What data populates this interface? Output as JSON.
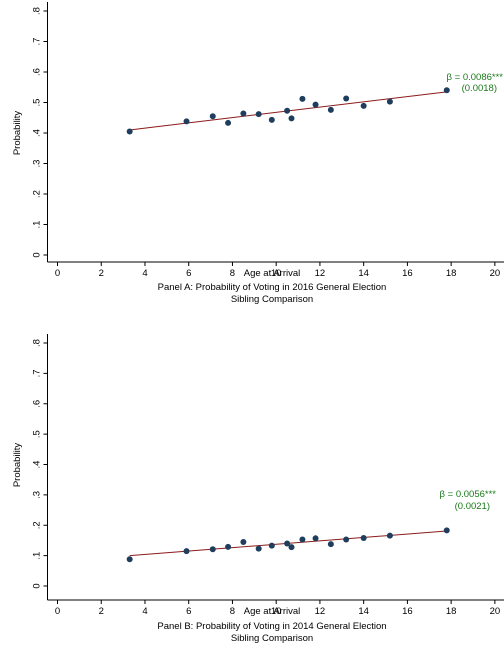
{
  "colors": {
    "marker": "#1f3d5c",
    "fit_line": "#8b1a1a",
    "annotation": "#1a7a1a",
    "axis": "#000000"
  },
  "chart_data": [
    {
      "type": "scatter",
      "panel_title": "Panel A: Probability of Voting in 2016 General Election",
      "panel_subtitle": "Sibling Comparison",
      "xlabel": "Age at Arrival",
      "ylabel": "Probability",
      "xlim": [
        0,
        20
      ],
      "ylim": [
        0,
        0.8
      ],
      "x_ticks": [
        0,
        2,
        4,
        6,
        8,
        10,
        12,
        14,
        16,
        18,
        20
      ],
      "x_tick_labels": [
        "0",
        "2",
        "4",
        "6",
        "8",
        "10",
        "12",
        "14",
        "16",
        "18",
        "20"
      ],
      "y_ticks": [
        0,
        0.1,
        0.2,
        0.3,
        0.4,
        0.5,
        0.6,
        0.7,
        0.8
      ],
      "y_tick_labels": [
        "0",
        ".1",
        ".2",
        ".3",
        ".4",
        ".5",
        ".6",
        ".7",
        ".8"
      ],
      "points": [
        {
          "x": 3.3,
          "y": 0.405
        },
        {
          "x": 5.9,
          "y": 0.438
        },
        {
          "x": 7.1,
          "y": 0.455
        },
        {
          "x": 7.8,
          "y": 0.433
        },
        {
          "x": 8.5,
          "y": 0.464
        },
        {
          "x": 9.2,
          "y": 0.462
        },
        {
          "x": 9.8,
          "y": 0.443
        },
        {
          "x": 10.5,
          "y": 0.473
        },
        {
          "x": 10.7,
          "y": 0.448
        },
        {
          "x": 11.2,
          "y": 0.512
        },
        {
          "x": 11.8,
          "y": 0.493
        },
        {
          "x": 12.5,
          "y": 0.476
        },
        {
          "x": 13.2,
          "y": 0.513
        },
        {
          "x": 14.0,
          "y": 0.489
        },
        {
          "x": 15.2,
          "y": 0.503
        },
        {
          "x": 17.8,
          "y": 0.54
        }
      ],
      "fit_line": {
        "x": [
          3.3,
          17.8
        ],
        "y": [
          0.41,
          0.535
        ]
      },
      "annotation": {
        "line1": "β = 0.0086***",
        "line2": "(0.0018)"
      }
    },
    {
      "type": "scatter",
      "panel_title": "Panel B: Probability of Voting in 2014 General Election",
      "panel_subtitle": "Sibling Comparison",
      "xlabel": "Age at Arrival",
      "ylabel": "Probability",
      "xlim": [
        0,
        20
      ],
      "ylim": [
        0,
        0.8
      ],
      "x_ticks": [
        0,
        2,
        4,
        6,
        8,
        10,
        12,
        14,
        16,
        18,
        20
      ],
      "x_tick_labels": [
        "0",
        "2",
        "4",
        "6",
        "8",
        "10",
        "12",
        "14",
        "16",
        "18",
        "20"
      ],
      "y_ticks": [
        0,
        0.1,
        0.2,
        0.3,
        0.4,
        0.5,
        0.6,
        0.7,
        0.8
      ],
      "y_tick_labels": [
        "0",
        ".1",
        ".2",
        ".3",
        ".4",
        ".5",
        ".6",
        ".7",
        ".8"
      ],
      "points": [
        {
          "x": 3.3,
          "y": 0.088
        },
        {
          "x": 5.9,
          "y": 0.115
        },
        {
          "x": 7.1,
          "y": 0.121
        },
        {
          "x": 7.8,
          "y": 0.129
        },
        {
          "x": 8.5,
          "y": 0.145
        },
        {
          "x": 9.2,
          "y": 0.123
        },
        {
          "x": 9.8,
          "y": 0.133
        },
        {
          "x": 10.5,
          "y": 0.14
        },
        {
          "x": 10.7,
          "y": 0.128
        },
        {
          "x": 11.2,
          "y": 0.153
        },
        {
          "x": 11.8,
          "y": 0.157
        },
        {
          "x": 12.5,
          "y": 0.138
        },
        {
          "x": 13.2,
          "y": 0.153
        },
        {
          "x": 14.0,
          "y": 0.158
        },
        {
          "x": 15.2,
          "y": 0.166
        },
        {
          "x": 17.8,
          "y": 0.183
        }
      ],
      "fit_line": {
        "x": [
          3.3,
          17.8
        ],
        "y": [
          0.1,
          0.181
        ]
      },
      "annotation": {
        "line1": "β = 0.0056***",
        "line2": "(0.0021)"
      }
    }
  ]
}
